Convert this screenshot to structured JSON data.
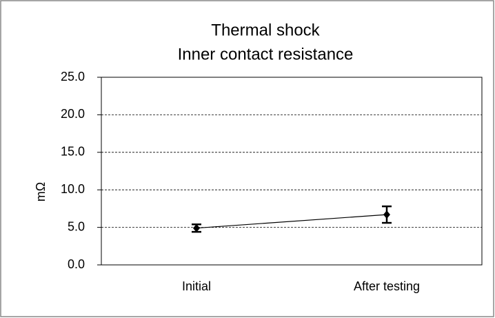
{
  "chart_data": {
    "type": "line",
    "title": [
      "Thermal shock",
      "Inner contact resistance"
    ],
    "y_label": "mΩ",
    "categories": [
      "Initial",
      "After testing"
    ],
    "values": [
      4.9,
      6.7
    ],
    "errors": [
      0.5,
      1.1
    ],
    "color": "#000000",
    "ylim": [
      0,
      25
    ],
    "yticks": [
      {
        "value": 0,
        "label": "0.0"
      },
      {
        "value": 5,
        "label": "5.0"
      },
      {
        "value": 10,
        "label": "10.0"
      },
      {
        "value": 15,
        "label": "15.0"
      },
      {
        "value": 20,
        "label": "20.0"
      },
      {
        "value": 25,
        "label": "25.0"
      }
    ],
    "grid": true
  }
}
